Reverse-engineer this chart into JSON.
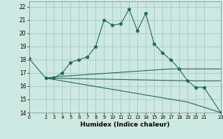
{
  "xlabel": "Humidex (Indice chaleur)",
  "bg_color": "#cce8e0",
  "grid_color": "#aacfc8",
  "line_color": "#1a6b5a",
  "xlim": [
    0,
    23
  ],
  "ylim": [
    14,
    22.4
  ],
  "xticks": [
    0,
    2,
    3,
    4,
    5,
    6,
    7,
    8,
    9,
    10,
    11,
    12,
    13,
    14,
    15,
    16,
    17,
    18,
    19,
    20,
    21,
    23
  ],
  "yticks": [
    14,
    15,
    16,
    17,
    18,
    19,
    20,
    21,
    22
  ],
  "lines": [
    {
      "x": [
        0,
        2,
        3,
        4,
        5,
        6,
        7,
        8,
        9,
        10,
        11,
        12,
        13,
        14,
        15,
        16,
        17,
        18,
        19,
        20,
        21,
        23
      ],
      "y": [
        18.1,
        16.6,
        16.6,
        17.0,
        17.8,
        18.0,
        18.2,
        19.0,
        21.0,
        20.6,
        20.7,
        21.8,
        20.2,
        21.5,
        19.2,
        18.5,
        18.0,
        17.3,
        16.4,
        15.9,
        15.9,
        14.0
      ],
      "markers": true
    },
    {
      "x": [
        2,
        3,
        17,
        23
      ],
      "y": [
        16.6,
        16.7,
        17.3,
        17.3
      ],
      "markers": false
    },
    {
      "x": [
        2,
        3,
        19,
        23
      ],
      "y": [
        16.6,
        16.6,
        16.4,
        16.4
      ],
      "markers": false
    },
    {
      "x": [
        2,
        3,
        19,
        23
      ],
      "y": [
        16.6,
        16.5,
        14.8,
        14.0
      ],
      "markers": false
    }
  ]
}
